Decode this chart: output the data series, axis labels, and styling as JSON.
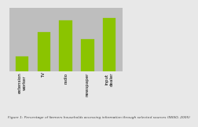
{
  "categories": [
    "extension\nworker",
    "TV",
    "radio",
    "newspaper",
    "input\ndealer"
  ],
  "values": [
    14,
    37,
    48,
    30,
    50
  ],
  "bar_color": "#8BC400",
  "plot_bg_color": "#BEBEBE",
  "fig_bg_color": "#E8E8E8",
  "ylim": [
    0,
    60
  ],
  "title": "Figure 1: Percentage of farmers households accessing information through selected sources (NSSO, 2005)",
  "title_fontsize": 3.2,
  "tick_fontsize": 4.0,
  "bar_width": 0.6
}
